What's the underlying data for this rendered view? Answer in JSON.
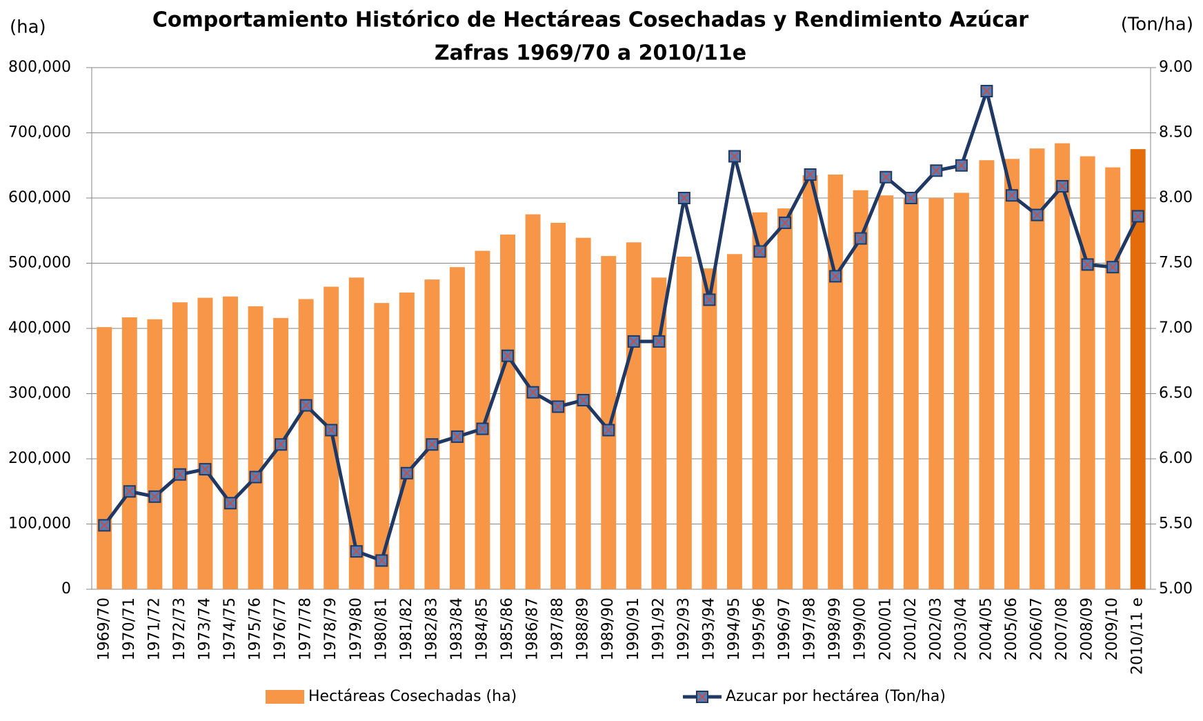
{
  "chart_data": {
    "type": "bar-line",
    "title": "Comportamiento Histórico de Hectáreas Cosechadas y Rendimiento Azúcar",
    "subtitle": "Zafras 1969/70 a 2010/11e",
    "y_label": "(ha)",
    "y2_label": "(Ton/ha)",
    "categories": [
      "1969/70",
      "1970/71",
      "1971/72",
      "1972/73",
      "1973/74",
      "1974/75",
      "1975/76",
      "1976/77",
      "1977/78",
      "1978/79",
      "1979/80",
      "1980/81",
      "1981/82",
      "1982/83",
      "1983/84",
      "1984/85",
      "1985/86",
      "1986/87",
      "1987/88",
      "1988/89",
      "1989/90",
      "1990/91",
      "1991/92",
      "1992/93",
      "1993/94",
      "1994/95",
      "1995/96",
      "1996/97",
      "1997/98",
      "1998/99",
      "1999/00",
      "2000/01",
      "2001/02",
      "2002/03",
      "2003/04",
      "2004/05",
      "2005/06",
      "2006/07",
      "2007/08",
      "2008/09",
      "2009/10",
      "2010/11 e"
    ],
    "series": [
      {
        "name": "Hectáreas Cosechadas (ha)",
        "type": "bar",
        "color": "#f79646",
        "point_colors": [
          "#f79646",
          "#f79646",
          "#f79646",
          "#f79646",
          "#f79646",
          "#f79646",
          "#f79646",
          "#f79646",
          "#f79646",
          "#f79646",
          "#f79646",
          "#f79646",
          "#f79646",
          "#f79646",
          "#f79646",
          "#f79646",
          "#f79646",
          "#f79646",
          "#f79646",
          "#f79646",
          "#f79646",
          "#f79646",
          "#f79646",
          "#f79646",
          "#f79646",
          "#f79646",
          "#f79646",
          "#f79646",
          "#f79646",
          "#f79646",
          "#f79646",
          "#f79646",
          "#f79646",
          "#f79646",
          "#f79646",
          "#f79646",
          "#f79646",
          "#f79646",
          "#f79646",
          "#f79646",
          "#f79646",
          "#e46c0a"
        ],
        "values": [
          402000,
          417000,
          414000,
          440000,
          447000,
          449000,
          434000,
          416000,
          445000,
          464000,
          478000,
          439000,
          455000,
          475000,
          494000,
          519000,
          544000,
          575000,
          562000,
          539000,
          511000,
          532000,
          478000,
          510000,
          492000,
          514000,
          578000,
          584000,
          635000,
          636000,
          612000,
          604000,
          600000,
          600000,
          608000,
          658000,
          660000,
          676000,
          684000,
          664000,
          647000,
          675000
        ]
      },
      {
        "name": "Azucar por hectárea (Ton/ha)",
        "type": "line",
        "axis": "y2",
        "color": "#1f3864",
        "marker_color": "#c0504d",
        "values": [
          5.49,
          5.75,
          5.71,
          5.88,
          5.92,
          5.66,
          5.86,
          6.11,
          6.41,
          6.22,
          5.29,
          5.22,
          5.89,
          6.11,
          6.17,
          6.23,
          6.79,
          6.51,
          6.4,
          6.45,
          6.22,
          6.9,
          6.9,
          8.0,
          7.22,
          8.32,
          7.59,
          7.81,
          8.18,
          7.4,
          7.69,
          8.16,
          8.0,
          8.21,
          8.25,
          8.82,
          8.02,
          7.87,
          8.09,
          7.49,
          7.47,
          7.86
        ]
      }
    ],
    "ylim": [
      0,
      800000
    ],
    "yticks": [
      0,
      {
        "value": 100000,
        "label": "100,000"
      },
      {
        "value": 200000,
        "label": "200,000"
      },
      {
        "value": 300000,
        "label": "300,000"
      },
      {
        "value": 400000,
        "label": "400,000"
      },
      {
        "value": 500000,
        "label": "500,000"
      },
      {
        "value": 600000,
        "label": "600,000"
      },
      {
        "value": 700000,
        "label": "700,000"
      },
      {
        "value": 800000,
        "label": "800,000"
      }
    ],
    "y2lim": [
      5,
      9
    ],
    "y2ticks": [
      {
        "value": 5,
        "label": "5.00"
      },
      {
        "value": 5.5,
        "label": "5.50"
      },
      {
        "value": 6,
        "label": "6.00"
      },
      {
        "value": 6.5,
        "label": "6.50"
      },
      {
        "value": 7,
        "label": "7.00"
      },
      {
        "value": 7.5,
        "label": "7.50"
      },
      {
        "value": 8,
        "label": "8.00"
      },
      {
        "value": 8.5,
        "label": "8.50"
      },
      {
        "value": 9,
        "label": "9.00"
      }
    ],
    "grid": true,
    "legend": "bottom"
  }
}
